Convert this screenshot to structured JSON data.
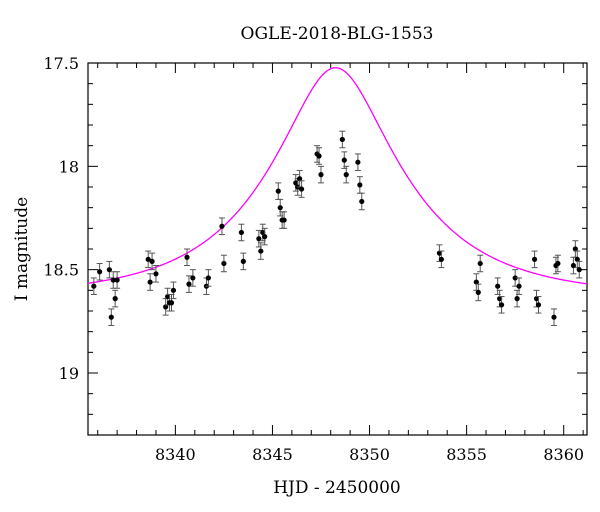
{
  "chart_data": {
    "type": "scatter",
    "title": "OGLE-2018-BLG-1553",
    "xlabel": "HJD - 2450000",
    "ylabel": "I magnitude",
    "xlim": [
      8335.5,
      8361.2
    ],
    "ylim": [
      19.3,
      17.5
    ],
    "y_inverted": true,
    "x_ticks": [
      8340,
      8345,
      8350,
      8355,
      8360
    ],
    "x_tick_labels": [
      "8340",
      "8345",
      "8350",
      "8355",
      "8360"
    ],
    "y_ticks": [
      17.5,
      18,
      18.5,
      19
    ],
    "y_tick_labels": [
      "17.5",
      "18",
      "18.5",
      "19"
    ],
    "grid": false,
    "legend": "none",
    "colors": {
      "data": "#000000",
      "model": "#ff00ff",
      "axes": "#000000"
    },
    "series": [
      {
        "type": "scatter_with_errorbars",
        "x": [
          8335.8,
          8336.1,
          8336.6,
          8336.7,
          8336.8,
          8336.9,
          8337.0,
          8338.6,
          8338.7,
          8338.8,
          8339.0,
          8339.5,
          8339.6,
          8339.7,
          8339.8,
          8339.9,
          8340.6,
          8340.7,
          8340.9,
          8341.6,
          8341.7,
          8342.4,
          8342.5,
          8343.4,
          8343.5,
          8344.3,
          8344.4,
          8344.5,
          8344.6,
          8345.3,
          8345.4,
          8345.5,
          8345.6,
          8346.2,
          8346.3,
          8346.4,
          8346.5,
          8347.3,
          8347.4,
          8347.5,
          8348.6,
          8348.7,
          8348.8,
          8349.4,
          8349.5,
          8349.6,
          8353.6,
          8353.7,
          8355.5,
          8355.6,
          8355.7,
          8356.6,
          8356.7,
          8356.8,
          8357.5,
          8357.6,
          8357.7,
          8358.5,
          8358.6,
          8358.7,
          8359.5,
          8359.6,
          8359.7,
          8360.5,
          8360.6,
          8360.7,
          8360.8
        ],
        "y": [
          18.58,
          18.51,
          18.5,
          18.73,
          18.55,
          18.64,
          18.55,
          18.45,
          18.56,
          18.46,
          18.52,
          18.68,
          18.63,
          18.66,
          18.66,
          18.6,
          18.44,
          18.57,
          18.54,
          18.58,
          18.54,
          18.29,
          18.47,
          18.32,
          18.46,
          18.35,
          18.41,
          18.32,
          18.34,
          18.12,
          18.2,
          18.26,
          18.26,
          18.08,
          18.1,
          18.06,
          18.11,
          17.94,
          17.95,
          18.04,
          17.87,
          17.97,
          18.04,
          17.98,
          18.09,
          18.17,
          18.42,
          18.45,
          18.56,
          18.61,
          18.47,
          18.58,
          18.64,
          18.67,
          18.54,
          18.64,
          18.58,
          18.45,
          18.64,
          18.67,
          18.73,
          18.48,
          18.47,
          18.48,
          18.4,
          18.45,
          18.5
        ],
        "yerr": 0.04
      },
      {
        "type": "model_curve",
        "model": "PSPL",
        "t0": 8348.25,
        "tE": 6.5,
        "u0": 0.38,
        "m_baseline": 18.63
      }
    ]
  }
}
